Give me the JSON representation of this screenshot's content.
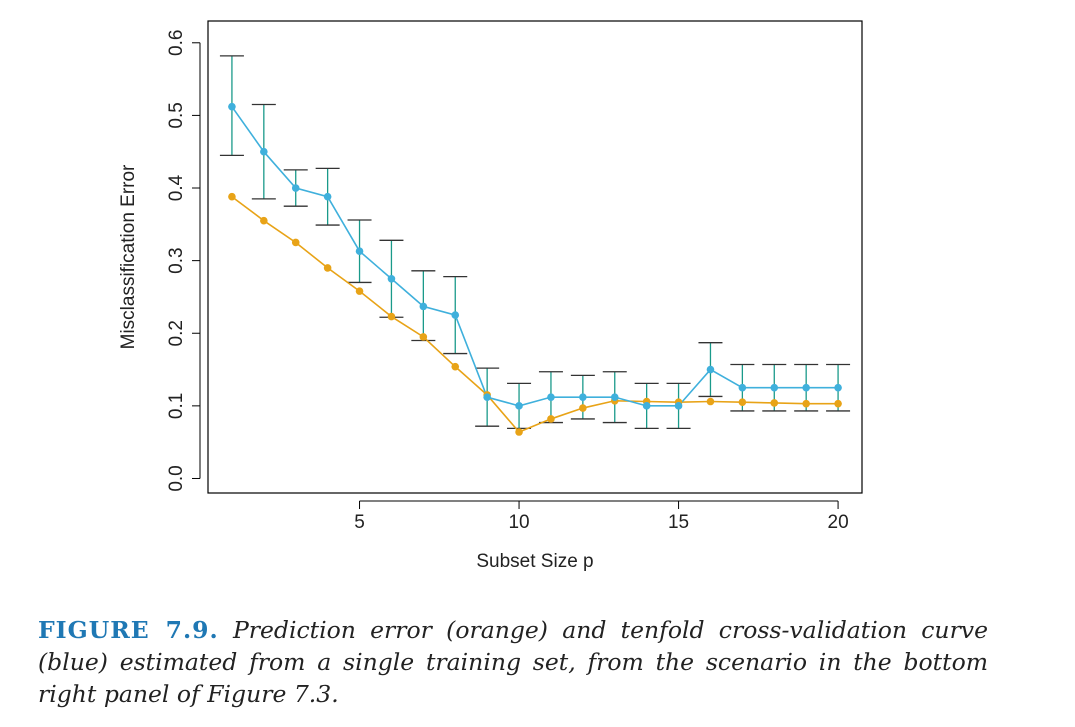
{
  "chart_data": {
    "type": "line",
    "xlabel": "Subset Size p",
    "ylabel": "Misclassification Error",
    "xlim": [
      0.25,
      20.75
    ],
    "ylim": [
      -0.02,
      0.63
    ],
    "x_ticks": [
      5,
      10,
      15,
      20
    ],
    "x_tick_labels": [
      "5",
      "10",
      "15",
      "20"
    ],
    "y_ticks": [
      0.0,
      0.1,
      0.2,
      0.3,
      0.4,
      0.5,
      0.6
    ],
    "y_tick_labels": [
      "0.0",
      "0.1",
      "0.2",
      "0.3",
      "0.4",
      "0.5",
      "0.6"
    ],
    "grid": false,
    "x": [
      1,
      2,
      3,
      4,
      5,
      6,
      7,
      8,
      9,
      10,
      11,
      12,
      13,
      14,
      15,
      16,
      17,
      18,
      19,
      20
    ],
    "series": [
      {
        "color": "#e8a317",
        "values": [
          0.388,
          0.355,
          0.325,
          0.29,
          0.258,
          0.223,
          0.195,
          0.154,
          0.115,
          0.064,
          0.082,
          0.097,
          0.107,
          0.106,
          0.105,
          0.106,
          0.105,
          0.104,
          0.103,
          0.103
        ]
      },
      {
        "color": "#3fb0dc",
        "error_bar_color": "#1a9a8a",
        "values": [
          0.512,
          0.45,
          0.4,
          0.388,
          0.313,
          0.275,
          0.237,
          0.225,
          0.112,
          0.1,
          0.112,
          0.112,
          0.112,
          0.1,
          0.1,
          0.15,
          0.125,
          0.125,
          0.125,
          0.125
        ],
        "upper": [
          0.582,
          0.515,
          0.425,
          0.427,
          0.356,
          0.328,
          0.286,
          0.278,
          0.152,
          0.131,
          0.147,
          0.142,
          0.147,
          0.131,
          0.131,
          0.187,
          0.157,
          0.157,
          0.157,
          0.157
        ],
        "lower": [
          0.445,
          0.385,
          0.375,
          0.349,
          0.27,
          0.222,
          0.19,
          0.172,
          0.072,
          0.069,
          0.077,
          0.082,
          0.077,
          0.069,
          0.069,
          0.113,
          0.093,
          0.093,
          0.093,
          0.093
        ]
      }
    ]
  },
  "caption": {
    "label": "FIGURE 7.9.",
    "text": "Prediction error (orange) and tenfold cross-validation curve (blue) estimated from a single training set, from the scenario in the bottom right panel of Figure 7.3."
  }
}
